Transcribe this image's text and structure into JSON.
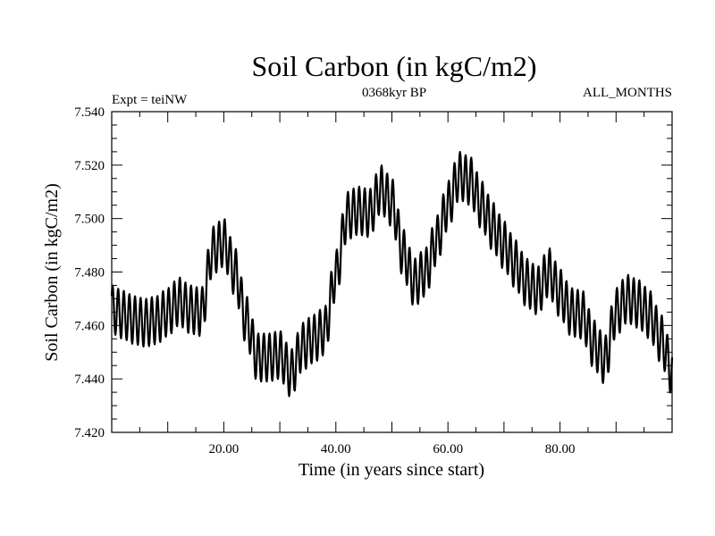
{
  "chart_data": {
    "type": "line",
    "title": "Soil Carbon (in kgC/m2)",
    "subtitle_left": "Expt = teiNW",
    "subtitle_center": "0368kyr BP",
    "subtitle_right": "ALL_MONTHS",
    "xlabel": "Time (in years since start)",
    "ylabel": "Soil Carbon (in kgC/m2)",
    "xlim": [
      0,
      100
    ],
    "ylim": [
      7.42,
      7.54
    ],
    "x_ticks": [
      20,
      40,
      60,
      80
    ],
    "x_tick_labels": [
      "20.00",
      "40.00",
      "60.00",
      "80.00"
    ],
    "y_ticks": [
      7.42,
      7.44,
      7.46,
      7.48,
      7.5,
      7.52,
      7.54
    ],
    "y_tick_labels": [
      "7.420",
      "7.440",
      "7.460",
      "7.480",
      "7.500",
      "7.520",
      "7.540"
    ],
    "grid": false,
    "line_color": "#000000",
    "seasonal_cycle_amplitude": 0.009,
    "series": [
      {
        "name": "Soil Carbon",
        "note": "annual-mean trend; plotted line adds a seasonal cycle of the given amplitude",
        "x": [
          0,
          2,
          4,
          6,
          8,
          10,
          12,
          14,
          16,
          18,
          20,
          22,
          24,
          26,
          28,
          30,
          32,
          34,
          36,
          38,
          40,
          42,
          44,
          46,
          48,
          50,
          52,
          54,
          56,
          58,
          60,
          62,
          64,
          66,
          68,
          70,
          72,
          74,
          76,
          78,
          80,
          82,
          84,
          86,
          88,
          90,
          92,
          94,
          96,
          98,
          100
        ],
        "y": [
          7.466,
          7.464,
          7.462,
          7.461,
          7.462,
          7.465,
          7.469,
          7.466,
          7.465,
          7.488,
          7.491,
          7.48,
          7.462,
          7.448,
          7.448,
          7.449,
          7.442,
          7.452,
          7.455,
          7.458,
          7.479,
          7.501,
          7.503,
          7.502,
          7.511,
          7.506,
          7.487,
          7.476,
          7.48,
          7.492,
          7.505,
          7.516,
          7.514,
          7.505,
          7.497,
          7.49,
          7.483,
          7.476,
          7.473,
          7.48,
          7.472,
          7.465,
          7.464,
          7.453,
          7.447,
          7.465,
          7.47,
          7.468,
          7.464,
          7.455,
          7.443
        ]
      }
    ]
  }
}
